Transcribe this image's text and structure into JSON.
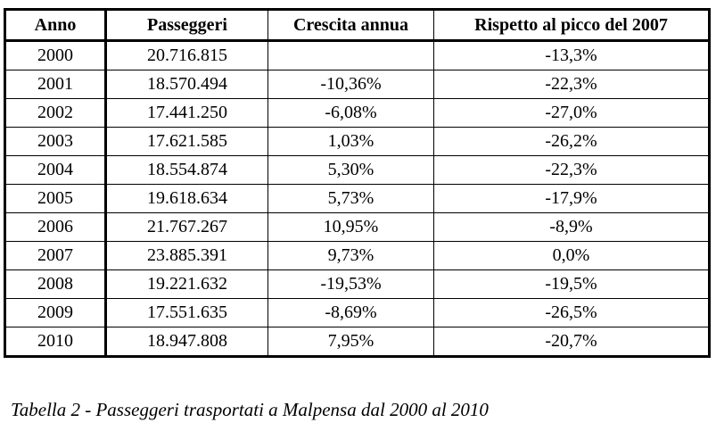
{
  "table": {
    "headers": [
      "Anno",
      "Passeggeri",
      "Crescita annua",
      "Rispetto al picco del 2007"
    ],
    "rows": [
      [
        "2000",
        "20.716.815",
        "",
        "-13,3%"
      ],
      [
        "2001",
        "18.570.494",
        "-10,36%",
        "-22,3%"
      ],
      [
        "2002",
        "17.441.250",
        "-6,08%",
        "-27,0%"
      ],
      [
        "2003",
        "17.621.585",
        "1,03%",
        "-26,2%"
      ],
      [
        "2004",
        "18.554.874",
        "5,30%",
        "-22,3%"
      ],
      [
        "2005",
        "19.618.634",
        "5,73%",
        "-17,9%"
      ],
      [
        "2006",
        "21.767.267",
        "10,95%",
        "-8,9%"
      ],
      [
        "2007",
        "23.885.391",
        "9,73%",
        "0,0%"
      ],
      [
        "2008",
        "19.221.632",
        "-19,53%",
        "-19,5%"
      ],
      [
        "2009",
        "17.551.635",
        "-8,69%",
        "-26,5%"
      ],
      [
        "2010",
        "18.947.808",
        "7,95%",
        "-20,7%"
      ]
    ]
  },
  "caption": "Tabella 2 - Passeggeri trasportati a Malpensa dal 2000 al 2010"
}
